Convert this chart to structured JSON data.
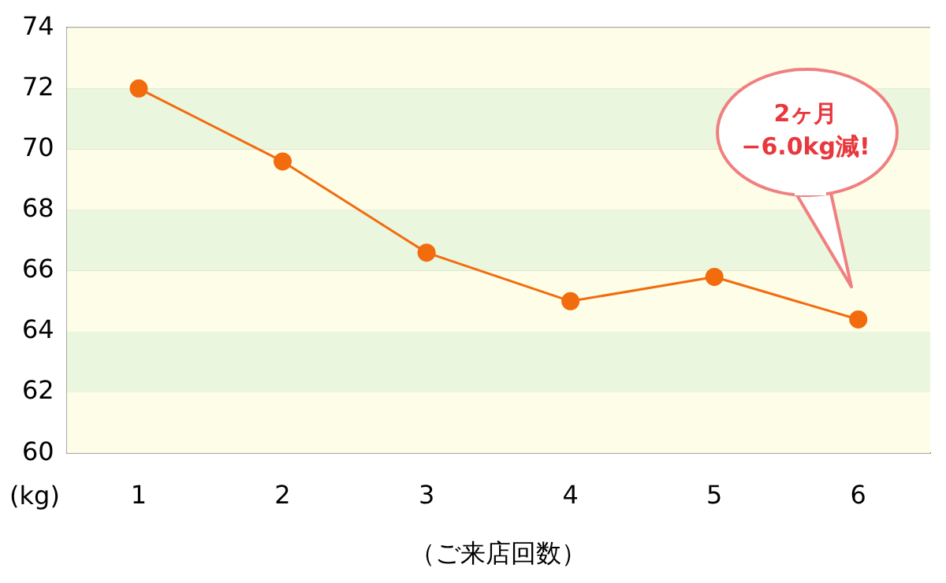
{
  "chart_data": {
    "type": "line",
    "xlabel": "（ご来店回数）",
    "ylabel": "(kg)",
    "categories": [
      "1",
      "2",
      "3",
      "4",
      "5",
      "6"
    ],
    "series": [
      {
        "color": "#f26c0d",
        "values": [
          72.0,
          69.6,
          66.6,
          65.0,
          65.8,
          64.4
        ]
      }
    ],
    "ylim": [
      60,
      74
    ],
    "yticks": [
      60,
      62,
      64,
      66,
      68,
      70,
      72,
      74
    ],
    "grid": "y",
    "legend": false,
    "marker": "circle",
    "line_style": "solid",
    "annotations": [
      "2ヶ月\n−6.0kg減!"
    ]
  }
}
